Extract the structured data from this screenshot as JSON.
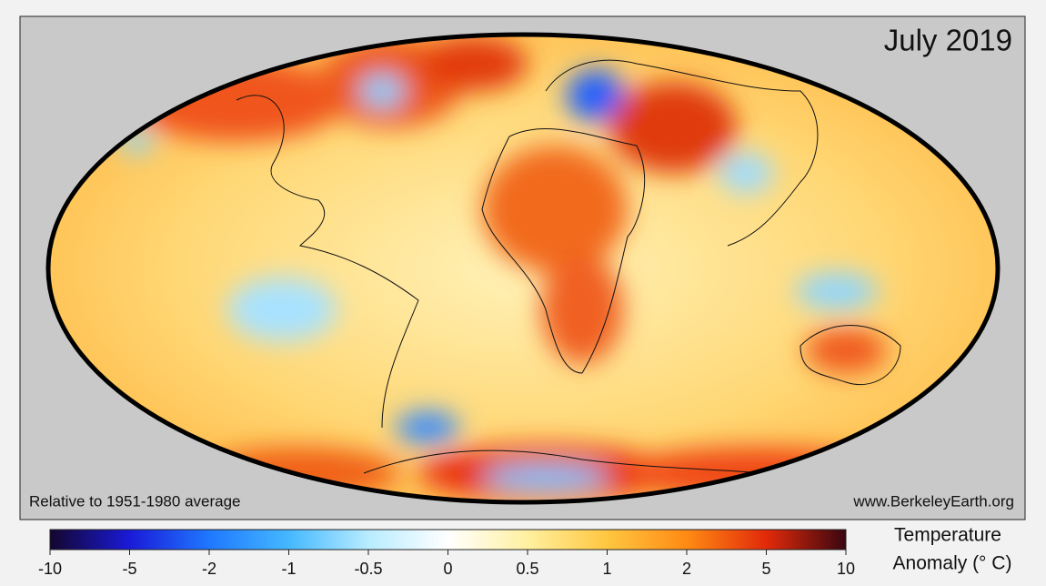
{
  "header": {
    "title": "July 2019"
  },
  "notes": {
    "left": "Relative to 1951-1980 average",
    "right": "www.BerkeleyEarth.org"
  },
  "colorbar": {
    "label_lines": [
      "Temperature",
      "Anomaly (° C)"
    ],
    "ticks": [
      -10,
      -5,
      -2,
      -1,
      -0.5,
      0,
      0.5,
      1,
      2,
      5,
      10
    ],
    "colors": [
      "#14062e",
      "#1a1ad8",
      "#1f78ff",
      "#45b8ff",
      "#b8ecff",
      "#ffffff",
      "#fff0a0",
      "#ffc640",
      "#ff8a14",
      "#e22a0a",
      "#3a0610"
    ]
  }
}
